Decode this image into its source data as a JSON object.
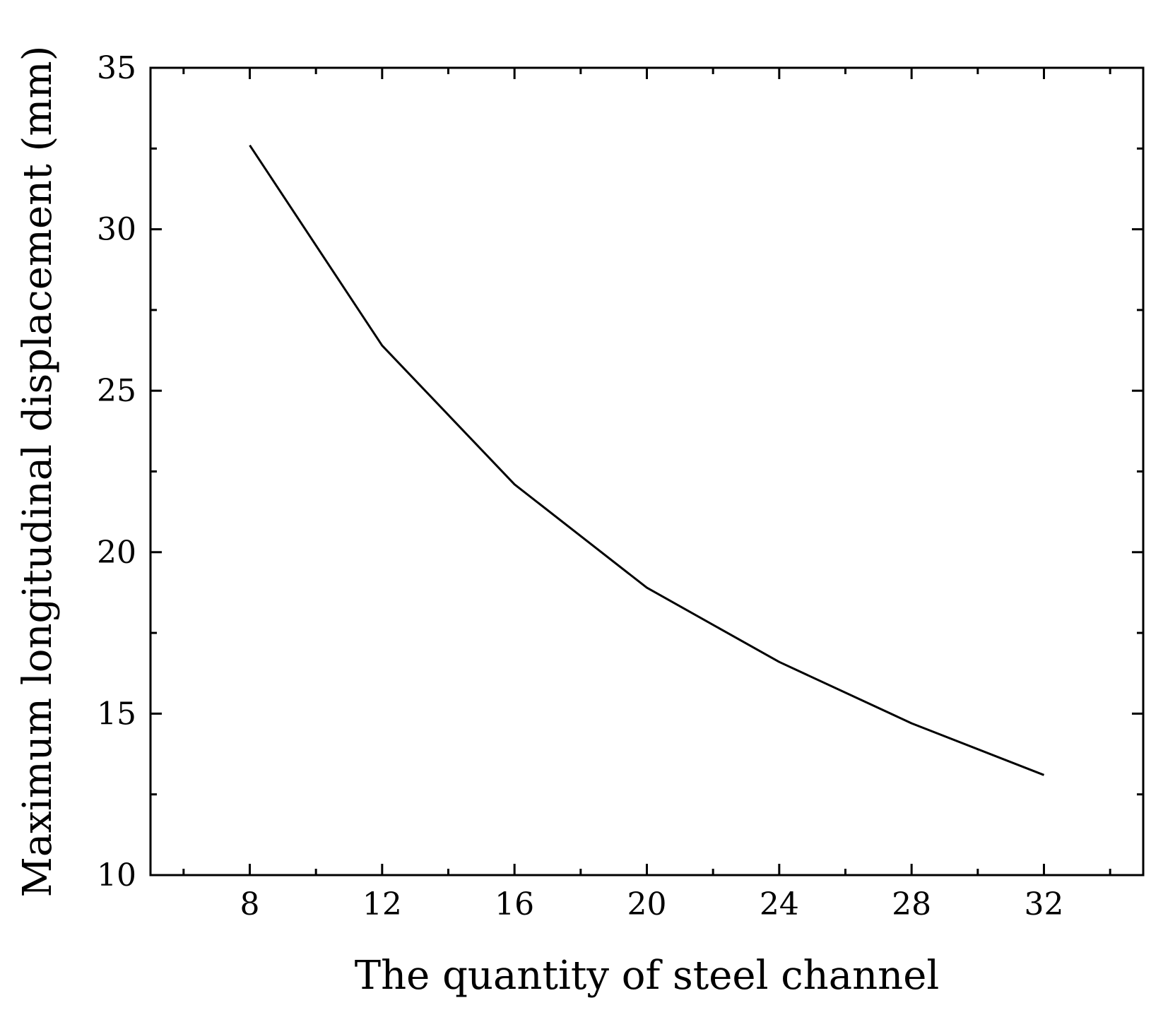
{
  "chart_data": {
    "type": "line",
    "title": "",
    "xlabel": "The quantity of steel channel",
    "ylabel": "Maximum longitudinal displacement (mm)",
    "xlim": [
      5,
      35
    ],
    "ylim": [
      10,
      35
    ],
    "xticks": [
      8,
      12,
      16,
      20,
      24,
      28,
      32
    ],
    "xminor": [
      6,
      10,
      14,
      18,
      22,
      26,
      30,
      34
    ],
    "yticks": [
      10,
      15,
      20,
      25,
      30,
      35
    ],
    "yminor": [
      12.5,
      17.5,
      22.5,
      27.5,
      32.5
    ],
    "grid": false,
    "series": [
      {
        "name": "Maximum longitudinal displacement",
        "x": [
          8,
          12,
          16,
          20,
          24,
          28,
          32
        ],
        "y": [
          32.6,
          26.4,
          22.1,
          18.9,
          16.6,
          14.7,
          13.1
        ],
        "color": "#000000"
      }
    ]
  }
}
